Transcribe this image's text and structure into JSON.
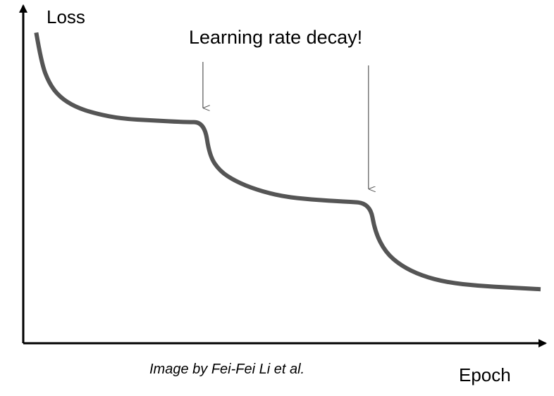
{
  "chart_data": {
    "type": "line",
    "title": "",
    "xlabel": "Epoch",
    "ylabel": "Loss",
    "grid": false,
    "ticks": false,
    "legend": "none",
    "series_color": "#555555",
    "axis_color": "#000000",
    "annotation": {
      "text": "Learning rate decay!",
      "target_x": [
        0.35,
        0.67
      ]
    },
    "caption": "Image by Fei-Fei Li et al.",
    "xlim": [
      0,
      1
    ],
    "ylim": [
      0,
      1
    ],
    "series": [
      {
        "x": [
          0.025,
          0.035,
          0.05,
          0.07,
          0.1,
          0.14,
          0.19,
          0.25,
          0.31,
          0.35,
          0.36,
          0.38,
          0.41,
          0.45,
          0.5,
          0.56,
          0.62,
          0.67,
          0.68,
          0.7,
          0.73,
          0.77,
          0.82,
          0.88,
          0.94,
          1.0
        ],
        "y": [
          0.92,
          0.83,
          0.77,
          0.73,
          0.7,
          0.68,
          0.665,
          0.66,
          0.655,
          0.655,
          0.555,
          0.51,
          0.48,
          0.455,
          0.435,
          0.425,
          0.42,
          0.415,
          0.33,
          0.27,
          0.23,
          0.2,
          0.18,
          0.17,
          0.165,
          0.16
        ]
      }
    ]
  }
}
